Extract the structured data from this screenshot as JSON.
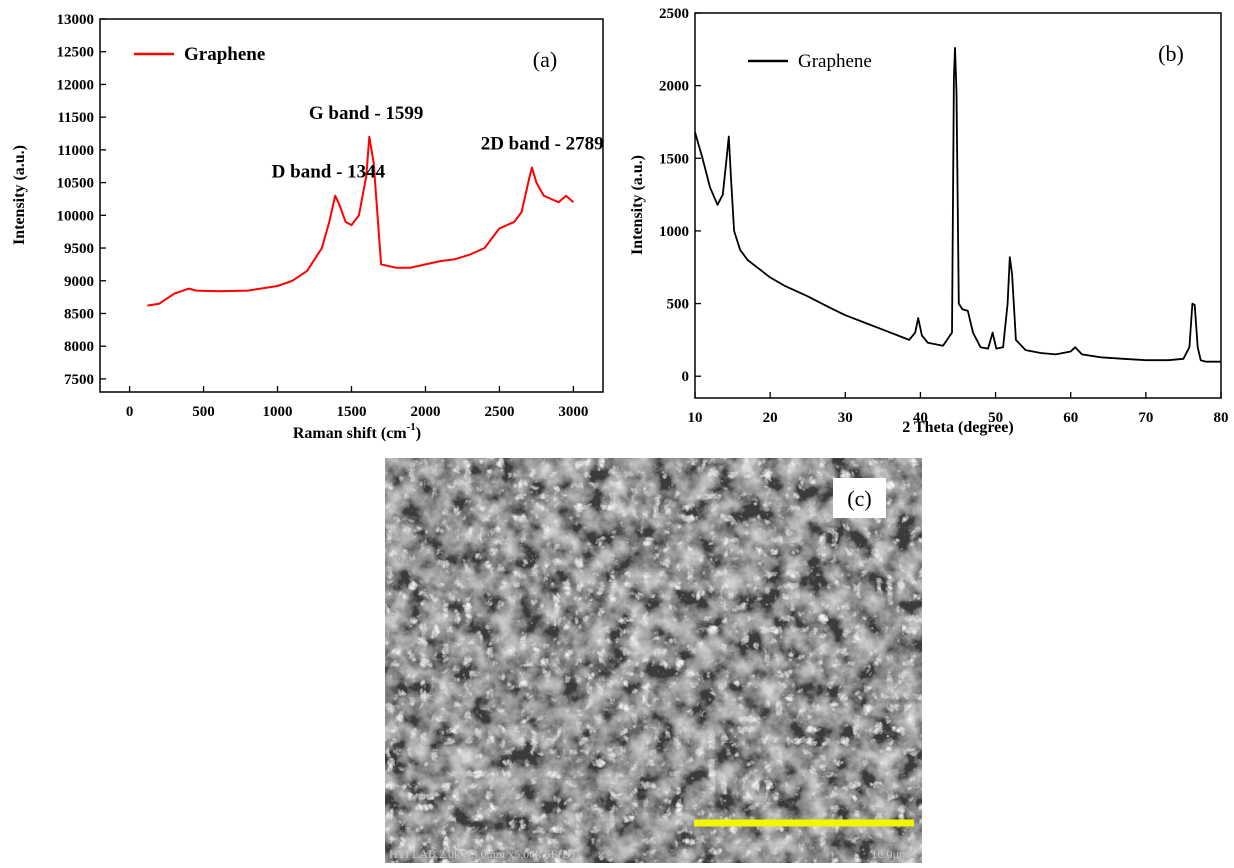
{
  "chart_data": [
    {
      "panel_label": "(a)",
      "type": "line",
      "xlabel": "Raman shift (cm",
      "xlabel_sup": "-1",
      "xlabel_suffix": ")",
      "ylabel": "Intensity (a.u.)",
      "xlim": [
        -200,
        3200
      ],
      "ylim": [
        7300,
        13000
      ],
      "xticks": [
        0,
        500,
        1000,
        1500,
        2000,
        2500,
        3000
      ],
      "yticks": [
        7500,
        8000,
        8500,
        9000,
        9500,
        10000,
        10500,
        11000,
        11500,
        12000,
        12500,
        13000
      ],
      "color": "#ff0000",
      "series": [
        {
          "name": "Graphene",
          "x": [
            120,
            200,
            300,
            400,
            450,
            600,
            800,
            1000,
            1100,
            1200,
            1300,
            1350,
            1390,
            1420,
            1460,
            1500,
            1550,
            1600,
            1620,
            1650,
            1700,
            1800,
            1900,
            2000,
            2100,
            2200,
            2300,
            2400,
            2500,
            2600,
            2650,
            2700,
            2720,
            2750,
            2800,
            2850,
            2900,
            2950,
            3000
          ],
          "y": [
            8620,
            8650,
            8800,
            8880,
            8850,
            8840,
            8850,
            8920,
            9000,
            9150,
            9500,
            9900,
            10300,
            10150,
            9900,
            9850,
            10000,
            10600,
            11200,
            10800,
            9250,
            9200,
            9200,
            9250,
            9300,
            9330,
            9400,
            9500,
            9800,
            9900,
            10050,
            10550,
            10730,
            10500,
            10300,
            10250,
            10200,
            10300,
            10200
          ]
        }
      ],
      "annotations": [
        {
          "text": "D band - 1344",
          "x": 1344,
          "y": 10300
        },
        {
          "text": "G band - 1599",
          "x": 1599,
          "y": 11200
        },
        {
          "text": "2D band - 2789",
          "x": 2789,
          "y": 10730
        }
      ]
    },
    {
      "panel_label": "(b)",
      "type": "line",
      "xlabel": "2 Theta (degree)",
      "ylabel": "Intensity (a.u.)",
      "xlim": [
        10,
        80
      ],
      "ylim": [
        -150,
        2500
      ],
      "xticks": [
        10,
        20,
        30,
        40,
        50,
        60,
        70,
        80
      ],
      "yticks": [
        0,
        500,
        1000,
        1500,
        2000,
        2500
      ],
      "color": "#000000",
      "series": [
        {
          "name": "Graphene",
          "x": [
            10,
            11,
            12,
            13,
            13.7,
            14.2,
            14.5,
            14.8,
            15.2,
            16,
            17,
            18,
            20,
            22,
            25,
            28,
            30,
            33,
            35,
            37,
            38.5,
            39.3,
            39.7,
            40.2,
            41,
            43,
            44.2,
            44.45,
            44.6,
            44.8,
            45.1,
            45.6,
            46.3,
            47,
            48,
            49,
            49.6,
            50.1,
            51,
            51.6,
            51.9,
            52.2,
            52.7,
            54,
            56,
            58,
            60,
            60.6,
            61.5,
            64,
            67,
            70,
            73,
            75,
            75.8,
            76.2,
            76.5,
            76.9,
            77.3,
            78,
            79,
            80
          ],
          "y": [
            1680,
            1500,
            1300,
            1180,
            1250,
            1500,
            1650,
            1350,
            1000,
            870,
            800,
            760,
            680,
            620,
            550,
            470,
            420,
            360,
            320,
            280,
            250,
            300,
            400,
            280,
            230,
            210,
            300,
            2050,
            2260,
            1950,
            500,
            460,
            450,
            300,
            200,
            190,
            300,
            190,
            200,
            500,
            820,
            700,
            250,
            180,
            160,
            150,
            170,
            200,
            150,
            130,
            120,
            110,
            110,
            120,
            200,
            500,
            490,
            200,
            110,
            100,
            100,
            100
          ]
        }
      ]
    }
  ],
  "sem_image": {
    "panel_label": "(c)",
    "info_text": "HTI LAB 2.0kV 3.6mm x5.00k SE(U)",
    "scale_text": "10.0µm",
    "scale_color": "#f5f500"
  }
}
